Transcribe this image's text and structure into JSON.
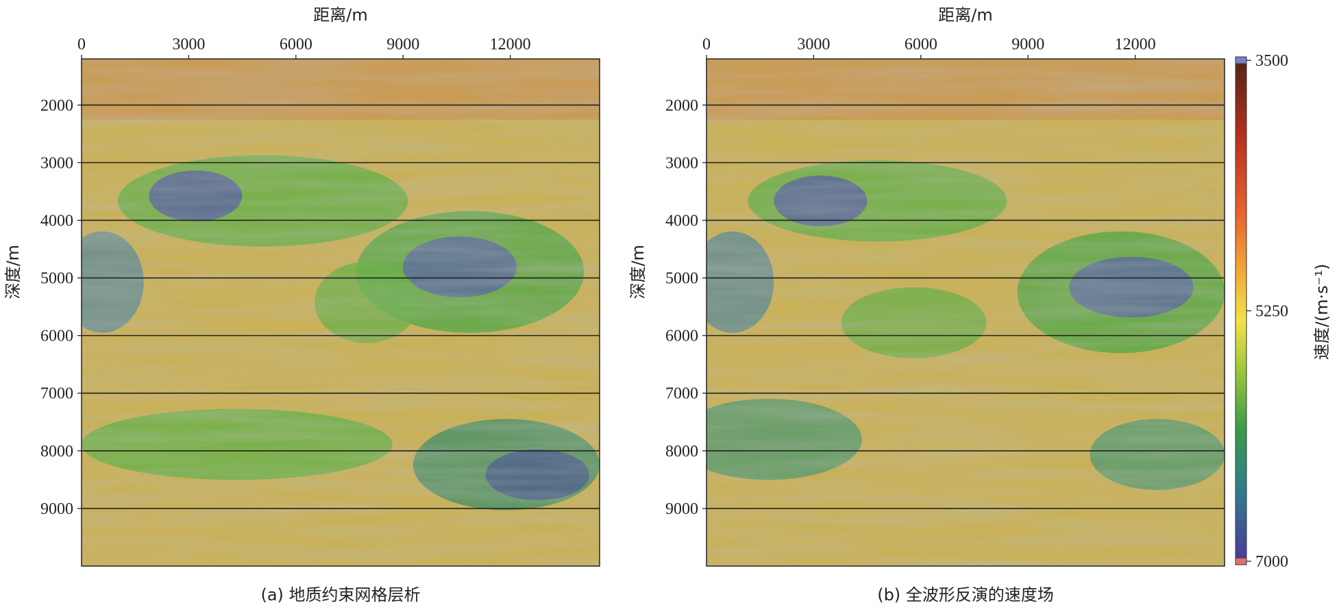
{
  "chart_data": [
    {
      "type": "heatmap",
      "panel_label": "(a) 地质约束网格层析",
      "xlabel": "距离/m",
      "ylabel": "深度/m",
      "xlim": [
        0,
        14500
      ],
      "ylim": [
        10000,
        1200
      ],
      "x_axis_position": "top",
      "xticks": [
        0,
        3000,
        6000,
        9000,
        12000
      ],
      "yticks": [
        2000,
        3000,
        4000,
        5000,
        6000,
        7000,
        8000,
        9000
      ],
      "gridlines_y": [
        2000,
        3000,
        4000,
        5000,
        6000,
        7000,
        8000,
        9000
      ]
    },
    {
      "type": "heatmap",
      "panel_label": "(b) 全波形反演的速度场",
      "xlabel": "距离/m",
      "ylabel": "深度/m",
      "xlim": [
        0,
        14500
      ],
      "ylim": [
        10000,
        1200
      ],
      "x_axis_position": "top",
      "xticks": [
        0,
        3000,
        6000,
        9000,
        12000
      ],
      "yticks": [
        2000,
        3000,
        4000,
        5000,
        6000,
        7000,
        8000,
        9000
      ],
      "gridlines_y": [
        2000,
        3000,
        4000,
        5000,
        6000,
        7000,
        8000,
        9000
      ]
    }
  ],
  "colorbar": {
    "label": "速度/(m·s⁻¹)",
    "ticks": [
      3500,
      5250,
      7000
    ],
    "range": [
      3500,
      7000
    ],
    "colors": [
      "#6b73c2",
      "#6b2a1e",
      "#c0392b",
      "#e0552a",
      "#f0a03a",
      "#f4e04a",
      "#9cc83a",
      "#3fa04a",
      "#2f8f8a",
      "#3a4fa0",
      "#4a3c9a",
      "#e07070"
    ]
  }
}
